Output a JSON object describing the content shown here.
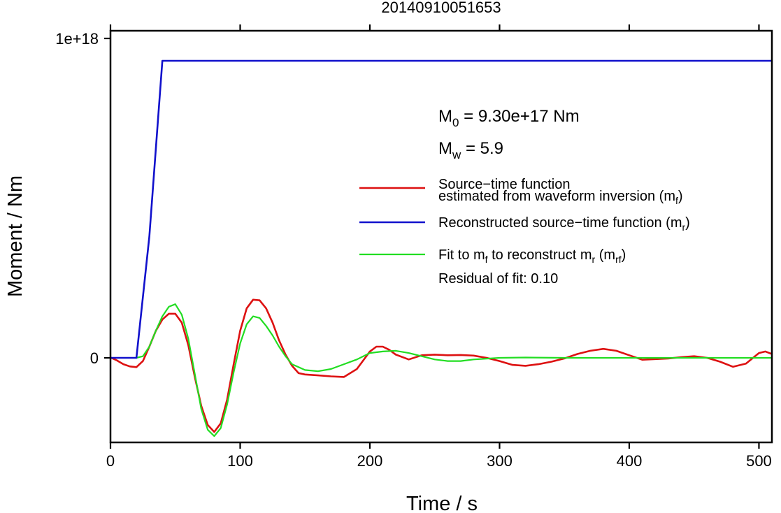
{
  "chart_data": {
    "type": "line",
    "title": "20140910051653",
    "xlabel": "Time / s",
    "ylabel": "Moment / Nm",
    "xlim": [
      0,
      510
    ],
    "ylim": [
      -2.65e+17,
      1e+18
    ],
    "x_ticks": [
      0,
      100,
      200,
      300,
      400,
      500
    ],
    "x_tick_labels": [
      "0",
      "100",
      "200",
      "300",
      "400",
      "500"
    ],
    "y_ticks": [
      0,
      1e+18
    ],
    "y_tick_labels": [
      "0",
      "1e+18"
    ],
    "grid": false,
    "legend_position": "right",
    "annotations": {
      "m0": {
        "symbol": "M",
        "sub": "0",
        "text": " = 9.30e+17 Nm"
      },
      "mw": {
        "symbol": "M",
        "sub": "w",
        "text": " = 5.9"
      },
      "residual": "Residual of fit: 0.10"
    },
    "legend": [
      {
        "color": "#dd1111",
        "line1": "Source−time function",
        "line2": "estimated from waveform inversion (m",
        "sub": "f",
        "close": ")"
      },
      {
        "color": "#1111cc",
        "line1": "Reconstructed source−time function (m",
        "sub": "r",
        "close": ")"
      },
      {
        "color": "#22dd22",
        "line1": "Fit to m",
        "sub1": "f",
        "mid": " to reconstruct m",
        "sub2": "r",
        "mid2": " (m",
        "sub3": "rf",
        "close": ")"
      }
    ],
    "series": [
      {
        "name": "Source−time function estimated from waveform inversion (mf)",
        "color": "#dd1111",
        "x": [
          0,
          5,
          10,
          15,
          20,
          25,
          30,
          35,
          40,
          45,
          50,
          55,
          60,
          65,
          70,
          75,
          80,
          85,
          90,
          95,
          100,
          105,
          110,
          115,
          120,
          125,
          130,
          135,
          140,
          145,
          150,
          160,
          170,
          180,
          190,
          200,
          205,
          210,
          215,
          220,
          230,
          240,
          250,
          260,
          270,
          280,
          290,
          300,
          310,
          320,
          330,
          340,
          350,
          360,
          370,
          380,
          390,
          400,
          410,
          420,
          430,
          440,
          450,
          460,
          470,
          480,
          490,
          500,
          505,
          510
        ],
        "y": [
          1000000000000000.0,
          -8000000000000000.0,
          -2e+16,
          -2.7e+16,
          -2.9e+16,
          -1e+16,
          3.5e+16,
          8.5e+16,
          1.2e+17,
          1.38e+17,
          1.38e+17,
          1.1e+17,
          4e+16,
          -6e+16,
          -1.5e+17,
          -2.1e+17,
          -2.32e+17,
          -2.05e+17,
          -1.3e+17,
          -2e+16,
          8.5e+16,
          1.55e+17,
          1.82e+17,
          1.8e+17,
          1.55e+17,
          1.1e+17,
          5.5e+16,
          1e+16,
          -2.5e+16,
          -4.8e+16,
          -5.2e+16,
          -5.5e+16,
          -5.8e+16,
          -6e+16,
          -3.5e+16,
          2e+16,
          3.5e+16,
          3.5e+16,
          2.5e+16,
          1e+16,
          -5000000000000000.0,
          8000000000000000.0,
          1e+16,
          8000000000000000.0,
          9000000000000000.0,
          7000000000000000.0,
          0.0,
          -1e+16,
          -2.2e+16,
          -2.5e+16,
          -2e+16,
          -1.2e+16,
          -2000000000000000.0,
          1.2e+16,
          2.2e+16,
          2.8e+16,
          2.2e+16,
          8000000000000000.0,
          -6000000000000000.0,
          -4000000000000000.0,
          -2000000000000000.0,
          2000000000000000.0,
          5000000000000000.0,
          0.0,
          -1.2e+16,
          -2.8e+16,
          -1.8e+16,
          1.5e+16,
          2e+16,
          1.2e+16
        ]
      },
      {
        "name": "Reconstructed source−time function (mr)",
        "color": "#1111cc",
        "x": [
          0,
          20,
          30,
          40,
          510
        ],
        "y": [
          0,
          0,
          3.8e+17,
          9.3e+17,
          9.3e+17
        ]
      },
      {
        "name": "Fit to mf to reconstruct mr (mrf)",
        "color": "#22dd22",
        "x": [
          20,
          25,
          30,
          35,
          40,
          45,
          50,
          55,
          60,
          65,
          70,
          75,
          80,
          85,
          90,
          95,
          100,
          105,
          110,
          115,
          120,
          125,
          130,
          135,
          140,
          150,
          160,
          170,
          180,
          190,
          200,
          210,
          220,
          230,
          240,
          250,
          260,
          270,
          280,
          300,
          320,
          350,
          400,
          450,
          510
        ],
        "y": [
          0,
          5000000000000000.0,
          3.5e+16,
          8.5e+16,
          1.3e+17,
          1.6e+17,
          1.68e+17,
          1.35e+17,
          6e+16,
          -5e+16,
          -1.6e+17,
          -2.25e+17,
          -2.45e+17,
          -2.2e+17,
          -1.45e+17,
          -4.5e+16,
          4.5e+16,
          1.05e+17,
          1.3e+17,
          1.25e+17,
          1e+17,
          7e+16,
          3.5e+16,
          5000000000000000.0,
          -2e+16,
          -3.8e+16,
          -4.2e+16,
          -3.5e+16,
          -2e+16,
          -5000000000000000.0,
          1.5e+16,
          2e+16,
          2.2e+16,
          1.5e+16,
          5000000000000000.0,
          -5000000000000000.0,
          -1e+16,
          -1e+16,
          -5000000000000000.0,
          0.0,
          1000000000000000.0,
          0.0,
          0.0,
          0.0,
          0.0
        ]
      }
    ]
  }
}
